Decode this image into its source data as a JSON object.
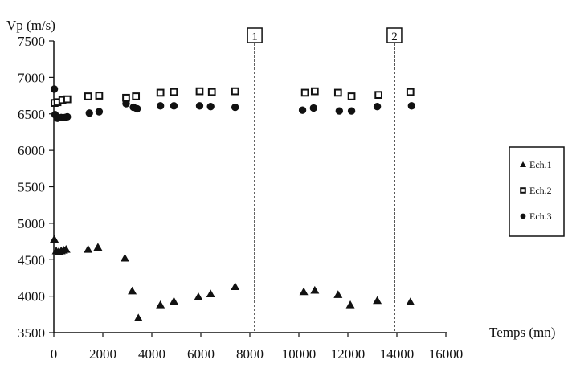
{
  "chart_data": {
    "type": "scatter",
    "ylabel": "Vp (m/s)",
    "xlabel": "Temps (mn)",
    "xlim": [
      0,
      16000
    ],
    "ylim": [
      3500,
      7500
    ],
    "xticks": [
      0,
      2000,
      4000,
      6000,
      8000,
      10000,
      12000,
      14000,
      16000
    ],
    "yticks": [
      3500,
      4000,
      4500,
      5000,
      5500,
      6000,
      6500,
      7000,
      7500
    ],
    "grid": false,
    "legend_position": "right",
    "markers": [
      {
        "label": "1",
        "x": 8200
      },
      {
        "label": "2",
        "x": 13900
      }
    ],
    "series": [
      {
        "name": "Ech.1",
        "marker": "triangle",
        "color": "#111111",
        "points": [
          [
            20,
            4780
          ],
          [
            100,
            4620
          ],
          [
            200,
            4610
          ],
          [
            300,
            4620
          ],
          [
            400,
            4630
          ],
          [
            500,
            4640
          ],
          [
            1400,
            4640
          ],
          [
            1800,
            4670
          ],
          [
            2900,
            4520
          ],
          [
            3200,
            4070
          ],
          [
            3450,
            3700
          ],
          [
            4350,
            3880
          ],
          [
            4900,
            3930
          ],
          [
            5900,
            3990
          ],
          [
            6400,
            4030
          ],
          [
            7400,
            4130
          ],
          [
            10200,
            4060
          ],
          [
            10650,
            4080
          ],
          [
            11600,
            4020
          ],
          [
            12100,
            3880
          ],
          [
            13200,
            3940
          ],
          [
            14550,
            3920
          ]
        ]
      },
      {
        "name": "Ech.2",
        "marker": "square",
        "color": "#111111",
        "points": [
          [
            30,
            6650
          ],
          [
            150,
            6660
          ],
          [
            350,
            6690
          ],
          [
            550,
            6700
          ],
          [
            1400,
            6740
          ],
          [
            1850,
            6750
          ],
          [
            2950,
            6720
          ],
          [
            3350,
            6740
          ],
          [
            4350,
            6790
          ],
          [
            4900,
            6800
          ],
          [
            5950,
            6810
          ],
          [
            6450,
            6800
          ],
          [
            7400,
            6810
          ],
          [
            10250,
            6790
          ],
          [
            10650,
            6810
          ],
          [
            11600,
            6790
          ],
          [
            12150,
            6740
          ],
          [
            13250,
            6760
          ],
          [
            14550,
            6800
          ]
        ]
      },
      {
        "name": "Ech.3",
        "marker": "circle",
        "color": "#111111",
        "points": [
          [
            20,
            6840
          ],
          [
            50,
            6490
          ],
          [
            150,
            6440
          ],
          [
            300,
            6450
          ],
          [
            450,
            6450
          ],
          [
            550,
            6460
          ],
          [
            1450,
            6510
          ],
          [
            1850,
            6530
          ],
          [
            2950,
            6640
          ],
          [
            3250,
            6590
          ],
          [
            3400,
            6570
          ],
          [
            4350,
            6610
          ],
          [
            4900,
            6610
          ],
          [
            5950,
            6610
          ],
          [
            6400,
            6600
          ],
          [
            7400,
            6590
          ],
          [
            10150,
            6550
          ],
          [
            10600,
            6580
          ],
          [
            11650,
            6540
          ],
          [
            12150,
            6540
          ],
          [
            13200,
            6600
          ],
          [
            14600,
            6610
          ]
        ]
      }
    ]
  }
}
